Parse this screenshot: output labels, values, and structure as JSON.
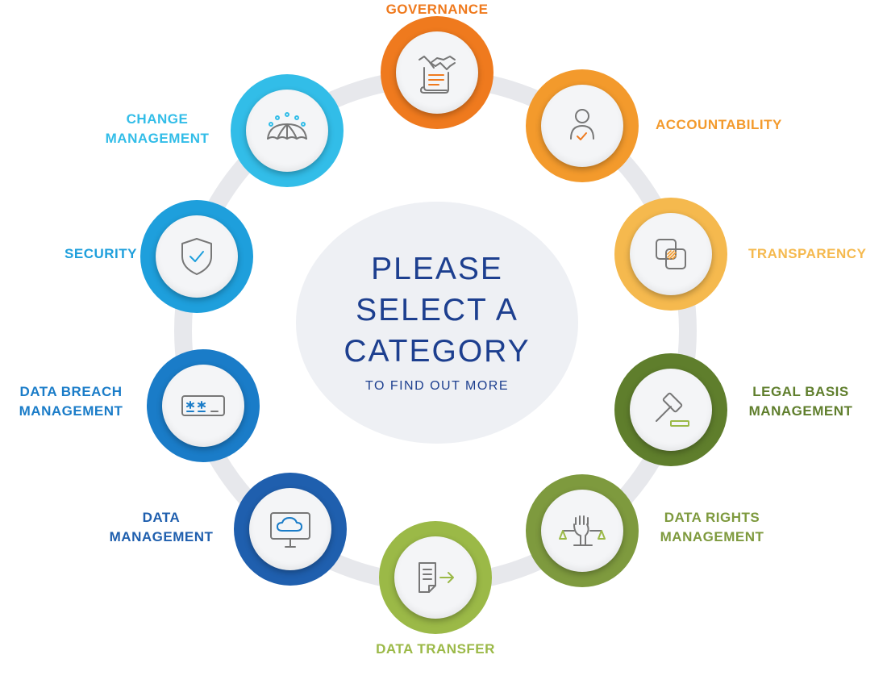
{
  "center": {
    "title": "PLEASE\nSELECT A\nCATEGORY",
    "subtitle": "TO FIND OUT MORE"
  },
  "colors": {
    "ring": "#e7e8ec",
    "center_bg": "#eef0f4",
    "center_text": "#1d3f8f",
    "icon_stroke": "#777777"
  },
  "categories": [
    {
      "label": "GOVERNANCE",
      "color": "#ef7a1e",
      "icon": "handshake-document-icon"
    },
    {
      "label": "ACCOUNTABILITY",
      "color": "#f39a2c",
      "icon": "person-check-icon"
    },
    {
      "label": "TRANSPARENCY",
      "color": "#f5b94e",
      "icon": "overlapping-squares-icon"
    },
    {
      "label": "LEGAL BASIS\nMANAGEMENT",
      "color": "#5f7e2c",
      "icon": "gavel-icon"
    },
    {
      "label": "DATA RIGHTS\nMANAGEMENT",
      "color": "#7e9a3e",
      "icon": "fist-scales-icon"
    },
    {
      "label": "DATA TRANSFER",
      "color": "#9bb947",
      "icon": "document-arrow-icon"
    },
    {
      "label": "DATA\nMANAGEMENT",
      "color": "#1f5fae",
      "icon": "cloud-monitor-icon"
    },
    {
      "label": "DATA BREACH\nMANAGEMENT",
      "color": "#1a7cc8",
      "icon": "password-field-icon"
    },
    {
      "label": "SECURITY",
      "color": "#1e9fdc",
      "icon": "shield-check-icon"
    },
    {
      "label": "CHANGE\nMANAGEMENT",
      "color": "#32bde8",
      "icon": "umbrella-icon"
    }
  ]
}
